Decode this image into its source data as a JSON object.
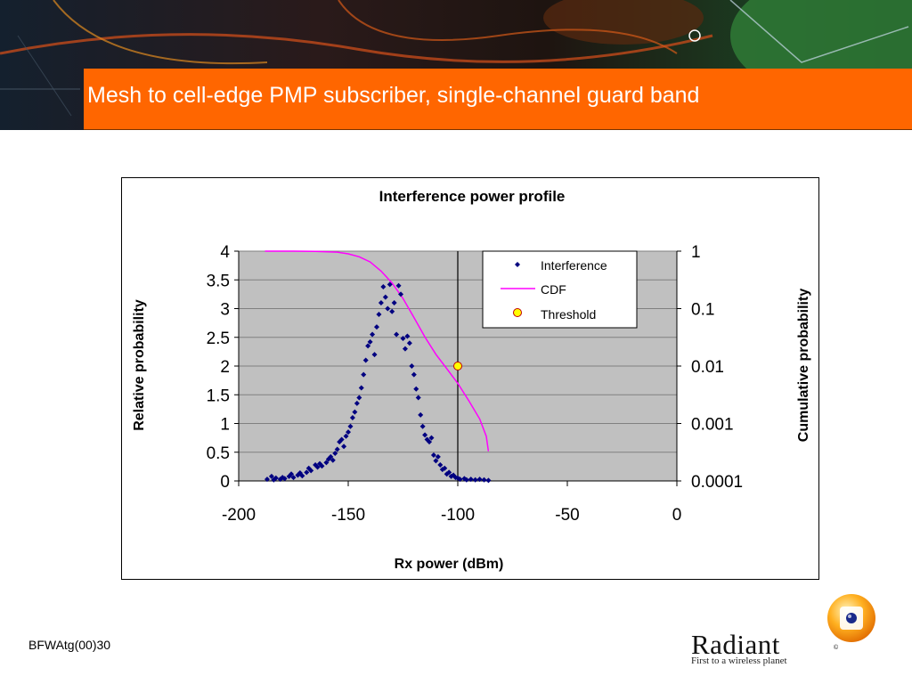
{
  "slide": {
    "title": "Mesh to cell-edge PMP subscriber, single-channel guard band",
    "footer_code": "BFWAtg(00)30"
  },
  "logo": {
    "name": "Radiant",
    "trademark": "©",
    "tagline": "First to a wireless planet"
  },
  "colors": {
    "title_bar": "#ff6600",
    "plot_area": "#c0c0c0",
    "interference_series": "#000080",
    "cdf_series": "#ff00ff",
    "threshold_fill": "#ffff00",
    "threshold_stroke": "#c00000"
  },
  "chart_data": {
    "type": "scatter",
    "title": "Interference power profile",
    "xlabel": "Rx power (dBm)",
    "ylabel": "Relative probability",
    "y2label": "Cumulative probability",
    "xlim": [
      -200,
      0
    ],
    "ylim": [
      0,
      4
    ],
    "y2lim": [
      0.0001,
      1
    ],
    "y2scale": "log",
    "x_ticks": [
      -200,
      -150,
      -100,
      -50,
      0
    ],
    "x_tick_labels": [
      "-200",
      "-150",
      "-100",
      "-50",
      "0"
    ],
    "y_ticks": [
      0,
      0.5,
      1,
      1.5,
      2,
      2.5,
      3,
      3.5,
      4
    ],
    "y_tick_labels": [
      "0",
      "0.5",
      "1",
      "1.5",
      "2",
      "2.5",
      "3",
      "3.5",
      "4"
    ],
    "y2_ticks": [
      0.0001,
      0.001,
      0.01,
      0.1,
      1
    ],
    "y2_tick_labels": [
      "0.0001",
      "0.001",
      "0.01",
      "0.1",
      "1"
    ],
    "grid": "horizontal major gridlines",
    "legend_position": "top-right inside plot",
    "vertical_marker_x": -100,
    "series": [
      {
        "name": "Interference",
        "kind": "scatter",
        "axis": "left",
        "points": [
          [
            -187,
            0.03
          ],
          [
            -185,
            0.08
          ],
          [
            -184,
            0.02
          ],
          [
            -183,
            0.05
          ],
          [
            -181,
            0.03
          ],
          [
            -180,
            0.06
          ],
          [
            -179,
            0.04
          ],
          [
            -177,
            0.08
          ],
          [
            -176,
            0.12
          ],
          [
            -175,
            0.06
          ],
          [
            -173,
            0.1
          ],
          [
            -172,
            0.14
          ],
          [
            -171,
            0.09
          ],
          [
            -169,
            0.15
          ],
          [
            -168,
            0.22
          ],
          [
            -167,
            0.18
          ],
          [
            -165,
            0.28
          ],
          [
            -164,
            0.24
          ],
          [
            -163,
            0.3
          ],
          [
            -162,
            0.26
          ],
          [
            -160,
            0.32
          ],
          [
            -159,
            0.38
          ],
          [
            -158,
            0.42
          ],
          [
            -157,
            0.36
          ],
          [
            -156,
            0.48
          ],
          [
            -155,
            0.55
          ],
          [
            -154,
            0.68
          ],
          [
            -153,
            0.72
          ],
          [
            -152,
            0.6
          ],
          [
            -151,
            0.78
          ],
          [
            -150,
            0.85
          ],
          [
            -149,
            0.95
          ],
          [
            -148,
            1.1
          ],
          [
            -147,
            1.2
          ],
          [
            -146,
            1.35
          ],
          [
            -145,
            1.45
          ],
          [
            -144,
            1.62
          ],
          [
            -143,
            1.85
          ],
          [
            -142,
            2.1
          ],
          [
            -141,
            2.35
          ],
          [
            -140,
            2.42
          ],
          [
            -139,
            2.55
          ],
          [
            -138,
            2.2
          ],
          [
            -137,
            2.68
          ],
          [
            -136,
            2.9
          ],
          [
            -135,
            3.1
          ],
          [
            -134,
            3.38
          ],
          [
            -133,
            3.2
          ],
          [
            -132,
            3.0
          ],
          [
            -131,
            3.42
          ],
          [
            -130,
            2.95
          ],
          [
            -129,
            3.1
          ],
          [
            -128,
            2.55
          ],
          [
            -127,
            3.4
          ],
          [
            -126,
            3.25
          ],
          [
            -125,
            2.48
          ],
          [
            -124,
            2.3
          ],
          [
            -123,
            2.52
          ],
          [
            -122,
            2.4
          ],
          [
            -121,
            2.0
          ],
          [
            -120,
            1.85
          ],
          [
            -119,
            1.6
          ],
          [
            -118,
            1.45
          ],
          [
            -117,
            1.15
          ],
          [
            -116,
            0.95
          ],
          [
            -115,
            0.8
          ],
          [
            -114,
            0.72
          ],
          [
            -113,
            0.68
          ],
          [
            -112,
            0.75
          ],
          [
            -111,
            0.45
          ],
          [
            -110,
            0.35
          ],
          [
            -109,
            0.42
          ],
          [
            -108,
            0.28
          ],
          [
            -107,
            0.2
          ],
          [
            -106,
            0.22
          ],
          [
            -105,
            0.12
          ],
          [
            -104,
            0.15
          ],
          [
            -103,
            0.08
          ],
          [
            -102,
            0.1
          ],
          [
            -101,
            0.06
          ],
          [
            -100,
            0.05
          ],
          [
            -99,
            0.03
          ],
          [
            -97,
            0.04
          ],
          [
            -96,
            0.02
          ],
          [
            -94,
            0.03
          ],
          [
            -92,
            0.02
          ],
          [
            -90,
            0.03
          ],
          [
            -88,
            0.02
          ],
          [
            -86,
            0.01
          ]
        ]
      },
      {
        "name": "CDF",
        "kind": "line",
        "axis": "right",
        "points": [
          [
            -188,
            1.0
          ],
          [
            -175,
            1.0
          ],
          [
            -165,
            0.99
          ],
          [
            -155,
            0.96
          ],
          [
            -150,
            0.9
          ],
          [
            -145,
            0.8
          ],
          [
            -140,
            0.65
          ],
          [
            -135,
            0.45
          ],
          [
            -130,
            0.28
          ],
          [
            -125,
            0.15
          ],
          [
            -120,
            0.07
          ],
          [
            -115,
            0.032
          ],
          [
            -110,
            0.016
          ],
          [
            -105,
            0.009
          ],
          [
            -100,
            0.005
          ],
          [
            -95,
            0.0025
          ],
          [
            -90,
            0.0012
          ],
          [
            -87,
            0.0006
          ],
          [
            -86,
            0.00033
          ]
        ]
      },
      {
        "name": "Threshold",
        "kind": "marker",
        "axis": "left",
        "points": [
          [
            -100,
            2
          ]
        ]
      }
    ]
  }
}
